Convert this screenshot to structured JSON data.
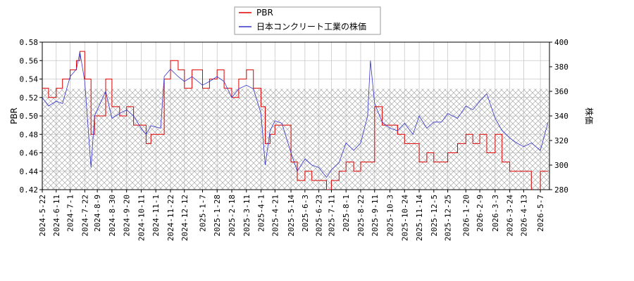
{
  "chart_data": {
    "type": "line",
    "title": "",
    "xlabel": "",
    "ylabel_left": "PBR",
    "ylabel_right": "株価",
    "ylim_left": [
      0.42,
      0.58
    ],
    "ylim_right": [
      280,
      400
    ],
    "yticks_left": [
      "0.42",
      "0.44",
      "0.46",
      "0.48",
      "0.50",
      "0.52",
      "0.54",
      "0.56",
      "0.58"
    ],
    "yticks_right": [
      "280",
      "300",
      "320",
      "340",
      "360",
      "380",
      "400"
    ],
    "xticks": [
      "2024-5-22",
      "2024-6-11",
      "2024-7-1",
      "2024-7-22",
      "2024-8-9",
      "2024-8-30",
      "2024-9-20",
      "2024-10-11",
      "2024-11-1",
      "2024-11-22",
      "2024-12-12",
      "2025-1-7",
      "2025-1-28",
      "2025-2-18",
      "2025-3-11",
      "2025-4-1",
      "2025-4-21",
      "2025-5-14",
      "2025-6-3",
      "2025-6-23",
      "2025-7-11",
      "2025-8-1",
      "2025-8-22",
      "2025-9-11",
      "2025-10-3",
      "2025-10-24",
      "2025-11-14",
      "2025-12-5",
      "2025-12-25",
      "2026-1-20",
      "2026-2-9",
      "2026-3-3",
      "2026-3-24",
      "2026-4-13",
      "2026-5-7"
    ],
    "x_range": [
      "2024-5-22",
      "2026-5-20"
    ],
    "grid": true,
    "legend_position": "top-center",
    "hatched_band": {
      "axis": "right",
      "from": 280,
      "to": 362
    },
    "series": [
      {
        "name": "PBR",
        "axis": "left",
        "color": "#dd0000",
        "x": [
          "2024-5-22",
          "2024-5-31",
          "2024-6-11",
          "2024-6-20",
          "2024-7-1",
          "2024-7-10",
          "2024-7-15",
          "2024-7-22",
          "2024-7-31",
          "2024-8-5",
          "2024-8-9",
          "2024-8-21",
          "2024-8-30",
          "2024-9-10",
          "2024-9-20",
          "2024-9-30",
          "2024-10-11",
          "2024-10-18",
          "2024-10-25",
          "2024-11-8",
          "2024-11-13",
          "2024-11-22",
          "2024-12-3",
          "2024-12-12",
          "2024-12-23",
          "2025-1-7",
          "2025-1-17",
          "2025-1-28",
          "2025-2-7",
          "2025-2-18",
          "2025-2-28",
          "2025-3-11",
          "2025-3-21",
          "2025-4-1",
          "2025-4-7",
          "2025-4-14",
          "2025-4-21",
          "2025-5-1",
          "2025-5-14",
          "2025-5-23",
          "2025-6-3",
          "2025-6-13",
          "2025-6-23",
          "2025-7-4",
          "2025-7-11",
          "2025-7-22",
          "2025-8-1",
          "2025-8-12",
          "2025-8-22",
          "2025-9-1",
          "2025-9-11",
          "2025-9-22",
          "2025-10-3",
          "2025-10-14",
          "2025-10-24",
          "2025-11-5",
          "2025-11-14",
          "2025-11-25",
          "2025-12-5",
          "2025-12-16",
          "2025-12-25",
          "2026-1-8",
          "2026-1-20",
          "2026-1-30",
          "2026-2-9",
          "2026-2-19",
          "2026-3-3",
          "2026-3-13",
          "2026-3-24",
          "2026-4-3",
          "2026-4-13",
          "2026-4-24",
          "2026-5-7",
          "2026-5-18"
        ],
        "values": [
          0.53,
          0.52,
          0.53,
          0.54,
          0.55,
          0.56,
          0.57,
          0.54,
          0.48,
          0.5,
          0.5,
          0.54,
          0.51,
          0.5,
          0.51,
          0.49,
          0.49,
          0.47,
          0.48,
          0.48,
          0.54,
          0.56,
          0.55,
          0.53,
          0.55,
          0.53,
          0.54,
          0.55,
          0.53,
          0.52,
          0.54,
          0.55,
          0.53,
          0.51,
          0.47,
          0.48,
          0.49,
          0.49,
          0.45,
          0.43,
          0.44,
          0.43,
          0.43,
          0.42,
          0.43,
          0.44,
          0.45,
          0.44,
          0.45,
          0.45,
          0.51,
          0.49,
          0.49,
          0.48,
          0.47,
          0.47,
          0.45,
          0.46,
          0.45,
          0.45,
          0.46,
          0.47,
          0.48,
          0.47,
          0.48,
          0.46,
          0.48,
          0.45,
          0.44,
          0.44,
          0.44,
          0.41,
          0.44,
          0.44
        ]
      },
      {
        "name": "日本コンクリート工業の株価",
        "axis": "right",
        "color": "#3333cc",
        "x": [
          "2024-5-22",
          "2024-5-31",
          "2024-6-11",
          "2024-6-20",
          "2024-7-1",
          "2024-7-10",
          "2024-7-15",
          "2024-7-22",
          "2024-7-31",
          "2024-8-5",
          "2024-8-9",
          "2024-8-21",
          "2024-8-30",
          "2024-9-10",
          "2024-9-20",
          "2024-9-30",
          "2024-10-11",
          "2024-10-18",
          "2024-10-25",
          "2024-11-8",
          "2024-11-13",
          "2024-11-22",
          "2024-12-3",
          "2024-12-12",
          "2024-12-23",
          "2025-1-7",
          "2025-1-17",
          "2025-1-28",
          "2025-2-7",
          "2025-2-18",
          "2025-2-28",
          "2025-3-11",
          "2025-3-21",
          "2025-4-1",
          "2025-4-7",
          "2025-4-14",
          "2025-4-21",
          "2025-5-1",
          "2025-5-14",
          "2025-5-23",
          "2025-6-3",
          "2025-6-13",
          "2025-6-23",
          "2025-7-4",
          "2025-7-11",
          "2025-7-22",
          "2025-8-1",
          "2025-8-12",
          "2025-8-22",
          "2025-9-1",
          "2025-9-5",
          "2025-9-11",
          "2025-9-22",
          "2025-10-3",
          "2025-10-14",
          "2025-10-24",
          "2025-11-5",
          "2025-11-14",
          "2025-11-25",
          "2025-12-5",
          "2025-12-16",
          "2025-12-25",
          "2026-1-8",
          "2026-1-20",
          "2026-1-30",
          "2026-2-9",
          "2026-2-19",
          "2026-3-3",
          "2026-3-13",
          "2026-3-24",
          "2026-4-3",
          "2026-4-13",
          "2026-4-24",
          "2026-5-7",
          "2026-5-18"
        ],
        "values": [
          355,
          348,
          352,
          350,
          372,
          378,
          392,
          368,
          298,
          340,
          345,
          360,
          338,
          342,
          345,
          340,
          330,
          325,
          332,
          330,
          372,
          378,
          372,
          368,
          372,
          365,
          368,
          372,
          368,
          355,
          362,
          365,
          362,
          342,
          300,
          328,
          336,
          334,
          310,
          295,
          305,
          300,
          298,
          290,
          296,
          302,
          318,
          312,
          318,
          340,
          385,
          350,
          335,
          330,
          328,
          334,
          325,
          340,
          330,
          335,
          335,
          342,
          338,
          348,
          345,
          352,
          358,
          338,
          328,
          322,
          318,
          315,
          318,
          312,
          335
        ]
      }
    ]
  }
}
